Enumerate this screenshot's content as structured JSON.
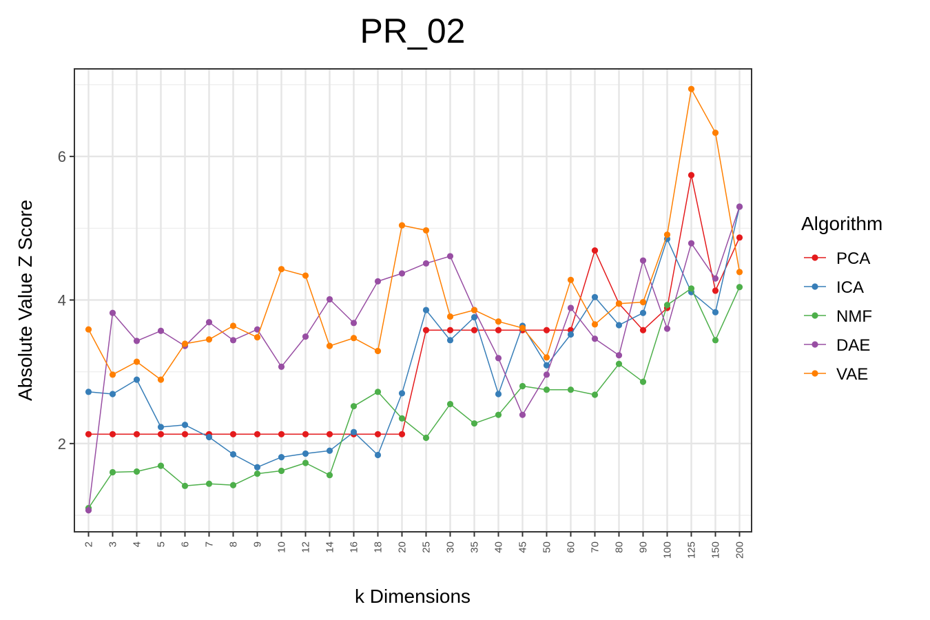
{
  "chart_data": {
    "type": "line",
    "title": "PR_02",
    "xlabel": "k Dimensions",
    "ylabel": "Absolute Value Z Score",
    "categories": [
      "2",
      "3",
      "4",
      "5",
      "6",
      "7",
      "8",
      "9",
      "10",
      "12",
      "14",
      "16",
      "18",
      "20",
      "25",
      "30",
      "35",
      "40",
      "45",
      "50",
      "60",
      "70",
      "80",
      "90",
      "100",
      "125",
      "150",
      "200"
    ],
    "ylim": [
      0.77,
      7.22
    ],
    "yticks": [
      2,
      4,
      6
    ],
    "grid": true,
    "legend_title": "Algorithm",
    "legend_position": "right",
    "series": [
      {
        "name": "PCA",
        "color": "#e41a1c",
        "values": [
          2.13,
          2.13,
          2.13,
          2.13,
          2.13,
          2.13,
          2.13,
          2.13,
          2.13,
          2.13,
          2.13,
          2.13,
          2.13,
          2.13,
          3.58,
          3.58,
          3.58,
          3.58,
          3.58,
          3.58,
          3.58,
          4.69,
          3.95,
          3.58,
          3.89,
          5.74,
          4.13,
          4.87
        ]
      },
      {
        "name": "ICA",
        "color": "#377eb8",
        "values": [
          2.72,
          2.69,
          2.89,
          2.23,
          2.26,
          2.09,
          1.85,
          1.67,
          1.81,
          1.86,
          1.9,
          2.16,
          1.84,
          2.7,
          3.86,
          3.44,
          3.76,
          2.69,
          3.64,
          3.09,
          3.52,
          4.04,
          3.65,
          3.82,
          4.85,
          4.11,
          3.83,
          5.3
        ]
      },
      {
        "name": "NMF",
        "color": "#4daf4a",
        "values": [
          1.1,
          1.6,
          1.61,
          1.69,
          1.41,
          1.44,
          1.42,
          1.58,
          1.62,
          1.73,
          1.56,
          2.52,
          2.72,
          2.35,
          2.08,
          2.55,
          2.28,
          2.4,
          2.8,
          2.75,
          2.75,
          2.68,
          3.11,
          2.86,
          3.93,
          4.16,
          3.44,
          4.18
        ]
      },
      {
        "name": "DAE",
        "color": "#984ea3",
        "values": [
          1.07,
          3.82,
          3.43,
          3.57,
          3.36,
          3.69,
          3.44,
          3.59,
          3.07,
          3.49,
          4.01,
          3.68,
          4.26,
          4.37,
          4.51,
          4.61,
          3.86,
          3.19,
          2.4,
          2.96,
          3.89,
          3.46,
          3.23,
          4.55,
          3.6,
          4.79,
          4.3,
          5.3
        ]
      },
      {
        "name": "VAE",
        "color": "#ff7f00",
        "values": [
          3.59,
          2.96,
          3.14,
          2.89,
          3.39,
          3.45,
          3.64,
          3.48,
          4.43,
          4.34,
          3.36,
          3.47,
          3.29,
          5.04,
          4.97,
          3.77,
          3.86,
          3.7,
          3.61,
          3.2,
          4.28,
          3.66,
          3.95,
          3.97,
          4.91,
          6.94,
          6.33,
          4.39
        ]
      }
    ]
  }
}
